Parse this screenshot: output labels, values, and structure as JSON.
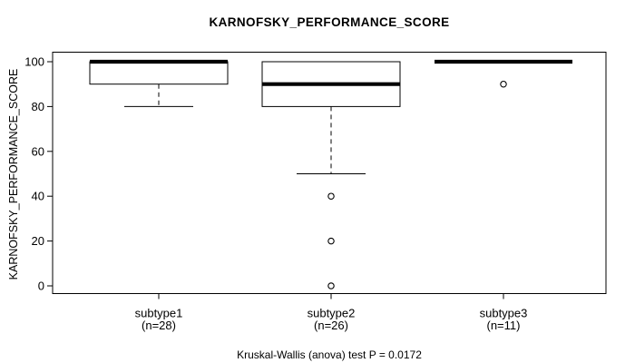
{
  "title": "KARNOFSKY_PERFORMANCE_SCORE",
  "caption": "Kruskal-Wallis (anova) test P = 0.0172",
  "colors": {
    "line": "#000000",
    "background": "#ffffff",
    "box_fill": "#ffffff"
  },
  "chart_data": {
    "type": "boxplot",
    "title": "KARNOFSKY_PERFORMANCE_SCORE",
    "ylabel": "KARNOFSKY_PERFORMANCE_SCORE",
    "xlabel": "",
    "ylim": [
      0,
      100
    ],
    "yticks": [
      0,
      20,
      40,
      60,
      80,
      100
    ],
    "grid": false,
    "legend": "none",
    "footnote": "Kruskal-Wallis (anova) test P = 0.0172",
    "groups": [
      {
        "label": "subtype1",
        "sublabel": "(n=28)",
        "n": 28,
        "median": 100,
        "q1": 90,
        "q3": 100,
        "whisker_low": 80,
        "whisker_high": 100,
        "outliers": []
      },
      {
        "label": "subtype2",
        "sublabel": "(n=26)",
        "n": 26,
        "median": 90,
        "q1": 80,
        "q3": 100,
        "whisker_low": 50,
        "whisker_high": 100,
        "outliers": [
          40,
          20,
          0
        ]
      },
      {
        "label": "subtype3",
        "sublabel": "(n=11)",
        "n": 11,
        "median": 100,
        "q1": 100,
        "q3": 100,
        "whisker_low": 100,
        "whisker_high": 100,
        "outliers": [
          90
        ]
      }
    ]
  }
}
